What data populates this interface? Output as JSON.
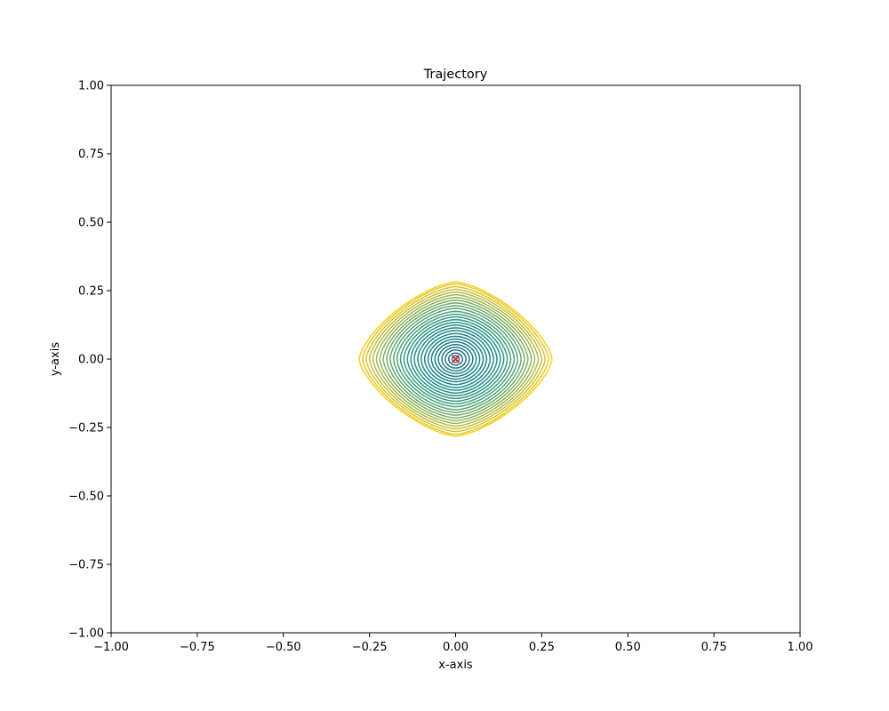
{
  "chart_data": {
    "type": "line",
    "title": "Trajectory",
    "xlabel": "x-axis",
    "ylabel": "y-axis",
    "xlim": [
      -1.0,
      1.0
    ],
    "ylim": [
      -1.0,
      1.0
    ],
    "xticks": [
      -1.0,
      -0.75,
      -0.5,
      -0.25,
      0.0,
      0.25,
      0.5,
      0.75,
      1.0
    ],
    "yticks": [
      -1.0,
      -0.75,
      -0.5,
      -0.25,
      0.0,
      0.25,
      0.5,
      0.75,
      1.0
    ],
    "xtick_labels": [
      "−1.00",
      "−0.75",
      "−0.50",
      "−0.25",
      "0.00",
      "0.25",
      "0.50",
      "0.75",
      "1.00"
    ],
    "ytick_labels": [
      "−1.00",
      "−0.75",
      "−0.50",
      "−0.25",
      "0.00",
      "0.25",
      "0.50",
      "0.75",
      "1.00"
    ],
    "grid": false,
    "colormap": "viridis",
    "contour_levels": [
      {
        "rx": 0.01,
        "ry": 0.012,
        "color": "#1f6e8c"
      },
      {
        "rx": 0.02,
        "ry": 0.022,
        "color": "#1f708c"
      },
      {
        "rx": 0.03,
        "ry": 0.033,
        "color": "#1e738c"
      },
      {
        "rx": 0.04,
        "ry": 0.043,
        "color": "#1e768c"
      },
      {
        "rx": 0.05,
        "ry": 0.053,
        "color": "#1d798c"
      },
      {
        "rx": 0.06,
        "ry": 0.063,
        "color": "#1c7c8c"
      },
      {
        "rx": 0.07,
        "ry": 0.073,
        "color": "#1c7f8b"
      },
      {
        "rx": 0.08,
        "ry": 0.083,
        "color": "#1b828b"
      },
      {
        "rx": 0.09,
        "ry": 0.093,
        "color": "#1b858a"
      },
      {
        "rx": 0.1,
        "ry": 0.104,
        "color": "#1e8889"
      },
      {
        "rx": 0.11,
        "ry": 0.114,
        "color": "#218b88"
      },
      {
        "rx": 0.12,
        "ry": 0.124,
        "color": "#258e87"
      },
      {
        "rx": 0.13,
        "ry": 0.134,
        "color": "#2a9185"
      },
      {
        "rx": 0.14,
        "ry": 0.144,
        "color": "#309583"
      },
      {
        "rx": 0.15,
        "ry": 0.154,
        "color": "#389981"
      },
      {
        "rx": 0.16,
        "ry": 0.164,
        "color": "#419d7e"
      },
      {
        "rx": 0.17,
        "ry": 0.174,
        "color": "#4ba17a"
      },
      {
        "rx": 0.18,
        "ry": 0.185,
        "color": "#57a576"
      },
      {
        "rx": 0.19,
        "ry": 0.195,
        "color": "#64a971"
      },
      {
        "rx": 0.2,
        "ry": 0.205,
        "color": "#72ad6b"
      },
      {
        "rx": 0.21,
        "ry": 0.215,
        "color": "#81b164"
      },
      {
        "rx": 0.22,
        "ry": 0.225,
        "color": "#91b55c"
      },
      {
        "rx": 0.23,
        "ry": 0.235,
        "color": "#a2b953"
      },
      {
        "rx": 0.24,
        "ry": 0.245,
        "color": "#b4bd49"
      },
      {
        "rx": 0.25,
        "ry": 0.255,
        "color": "#c6c03e"
      },
      {
        "rx": 0.26,
        "ry": 0.265,
        "color": "#d8c433"
      },
      {
        "rx": 0.27,
        "ry": 0.275,
        "color": "#e8c828"
      },
      {
        "rx": 0.28,
        "ry": 0.282,
        "color": "#f4d21e"
      }
    ],
    "marker": {
      "x": 0.0,
      "y": 0.0,
      "symbol": "x",
      "color": "#d62728"
    }
  }
}
